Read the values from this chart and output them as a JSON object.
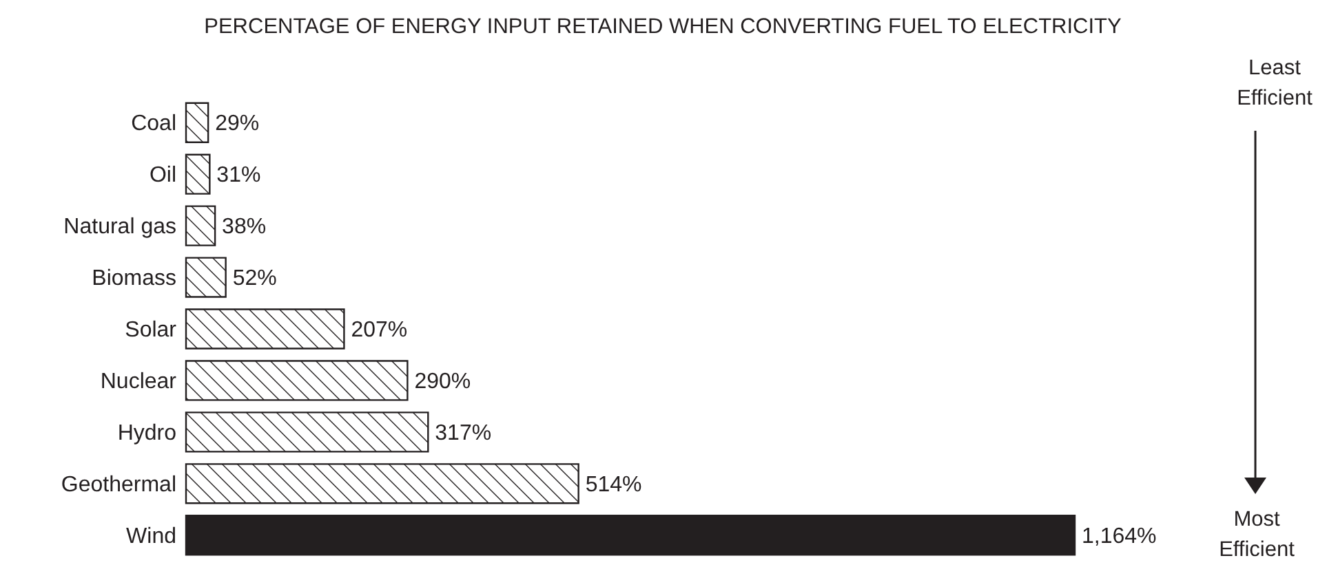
{
  "chart_data": {
    "type": "bar",
    "orientation": "horizontal",
    "title": "PERCENTAGE OF ENERGY INPUT RETAINED WHEN CONVERTING FUEL TO ELECTRICITY",
    "categories": [
      "Coal",
      "Oil",
      "Natural gas",
      "Biomass",
      "Solar",
      "Nuclear",
      "Hydro",
      "Geothermal",
      "Wind"
    ],
    "values": [
      29,
      31,
      38,
      52,
      207,
      290,
      317,
      514,
      1164
    ],
    "value_labels": [
      "29%",
      "31%",
      "38%",
      "52%",
      "207%",
      "290%",
      "317%",
      "514%",
      "1,164%"
    ],
    "colors": [
      "#ffffff",
      "#ffffff",
      "#ffffff",
      "#ffffff",
      "#ffffff",
      "#ffffff",
      "#ffffff",
      "#ffffff",
      "#231f20"
    ],
    "annotations": [
      "Least Efficient",
      "Most Efficient"
    ]
  }
}
